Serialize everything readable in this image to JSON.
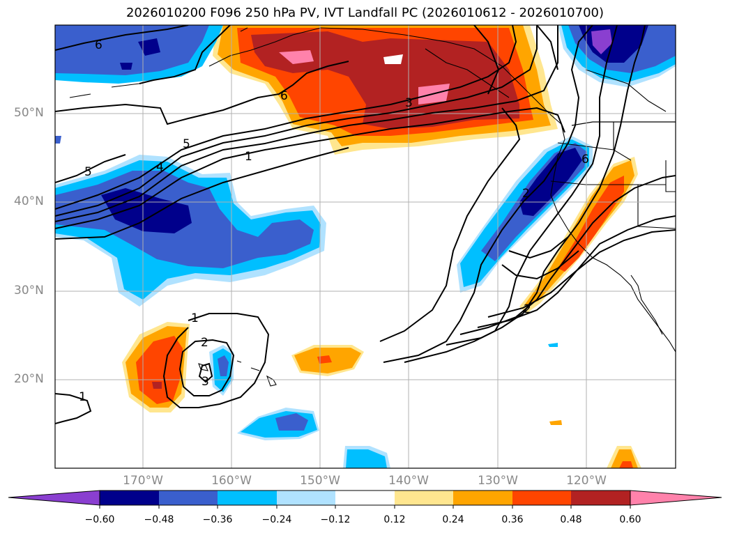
{
  "map": {
    "title": "2026010200 F096 250 hPa PV, IVT Landfall PC (2026010612 - 2026010700)",
    "lat_labels": [
      "50°N",
      "40°N",
      "30°N",
      "20°N"
    ],
    "lon_labels": [
      "170°W",
      "160°W",
      "150°W",
      "140°W",
      "130°W",
      "120°W"
    ],
    "contour_labels": [
      "6",
      "6",
      "5",
      "5",
      "4",
      "1",
      "3",
      "1",
      "2",
      "3",
      "1",
      "2",
      "6",
      "2"
    ]
  },
  "colorbar": {
    "tick_labels": [
      "−0.60",
      "−0.48",
      "−0.36",
      "−0.24",
      "−0.12",
      "0.12",
      "0.24",
      "0.36",
      "0.48",
      "0.60"
    ],
    "colors": [
      "#8a3fd0",
      "#00008b",
      "#3a5fcd",
      "#00bfff",
      "#b0e2ff",
      "#ffffff",
      "#ffe68f",
      "#ffa500",
      "#ff4500",
      "#b22222",
      "#ff82ab"
    ]
  }
}
